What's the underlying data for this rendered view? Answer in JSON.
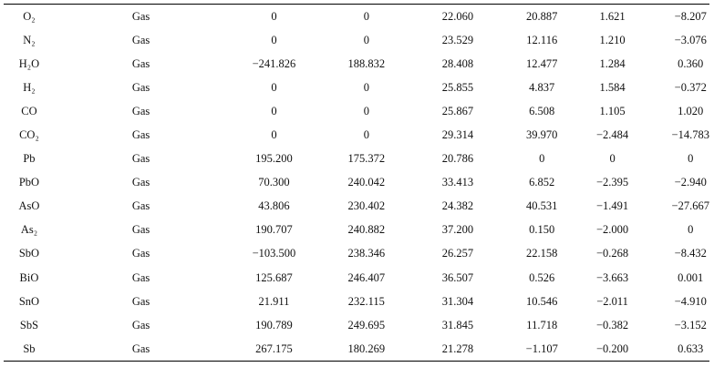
{
  "table": {
    "rows": [
      [
        "O₂",
        "Gas",
        "0",
        "0",
        "22.060",
        "20.887",
        "1.621",
        "−8.207"
      ],
      [
        "N₂",
        "Gas",
        "0",
        "0",
        "23.529",
        "12.116",
        "1.210",
        "−3.076"
      ],
      [
        "H₂O",
        "Gas",
        "−241.826",
        "188.832",
        "28.408",
        "12.477",
        "1.284",
        "0.360"
      ],
      [
        "H₂",
        "Gas",
        "0",
        "0",
        "25.855",
        "4.837",
        "1.584",
        "−0.372"
      ],
      [
        "CO",
        "Gas",
        "0",
        "0",
        "25.867",
        "6.508",
        "1.105",
        "1.020"
      ],
      [
        "CO₂",
        "Gas",
        "0",
        "0",
        "29.314",
        "39.970",
        "−2.484",
        "−14.783"
      ],
      [
        "Pb",
        "Gas",
        "195.200",
        "175.372",
        "20.786",
        "0",
        "0",
        "0"
      ],
      [
        "PbO",
        "Gas",
        "70.300",
        "240.042",
        "33.413",
        "6.852",
        "−2.395",
        "−2.940"
      ],
      [
        "AsO",
        "Gas",
        "43.806",
        "230.402",
        "24.382",
        "40.531",
        "−1.491",
        "−27.667"
      ],
      [
        "As₂",
        "Gas",
        "190.707",
        "240.882",
        "37.200",
        "0.150",
        "−2.000",
        "0"
      ],
      [
        "SbO",
        "Gas",
        "−103.500",
        "238.346",
        "26.257",
        "22.158",
        "−0.268",
        "−8.432"
      ],
      [
        "BiO",
        "Gas",
        "125.687",
        "246.407",
        "36.507",
        "0.526",
        "−3.663",
        "0.001"
      ],
      [
        "SnO",
        "Gas",
        "21.911",
        "232.115",
        "31.304",
        "10.546",
        "−2.011",
        "−4.910"
      ],
      [
        "SbS",
        "Gas",
        "190.789",
        "249.695",
        "31.845",
        "11.718",
        "−0.382",
        "−3.152"
      ],
      [
        "Sb",
        "Gas",
        "267.175",
        "180.269",
        "21.278",
        "−1.107",
        "−0.200",
        "0.633"
      ]
    ]
  }
}
